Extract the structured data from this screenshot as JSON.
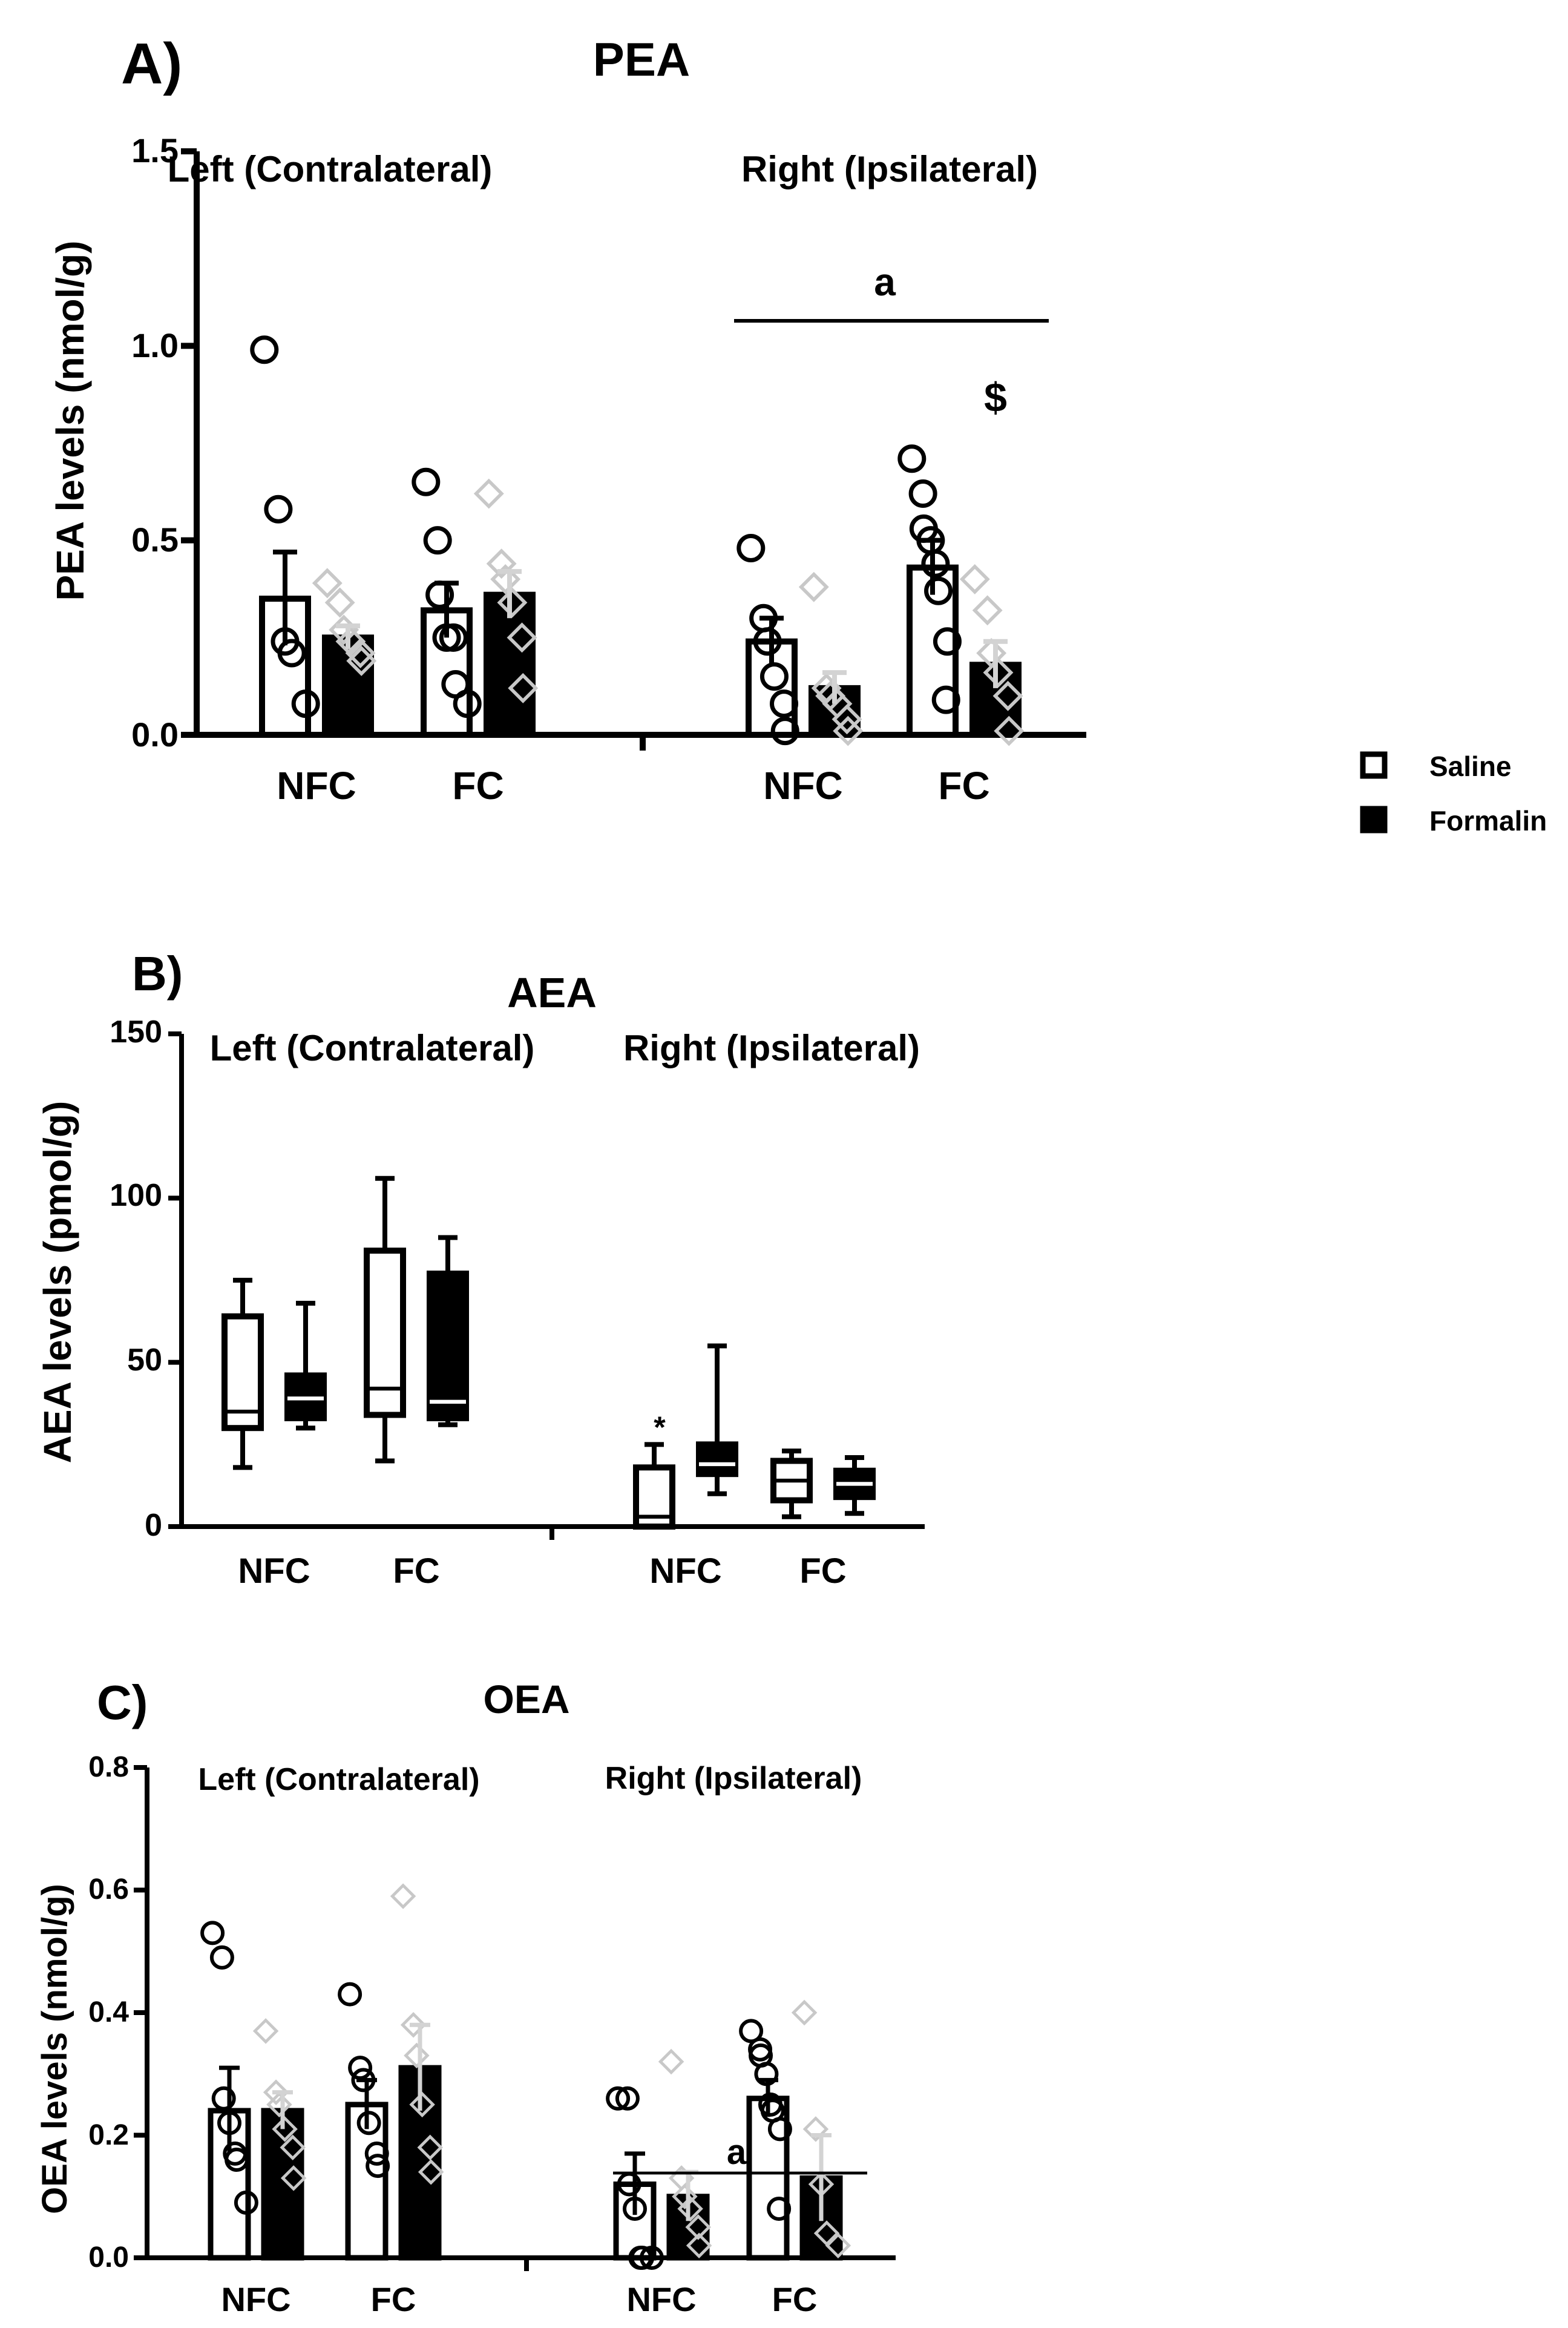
{
  "legend": {
    "items": [
      {
        "label": "Saline",
        "swatch": "open"
      },
      {
        "label": "Formalin",
        "swatch": "filled"
      }
    ]
  },
  "colors": {
    "bar_stroke": "#000000",
    "saline_fill": "#ffffff",
    "formalin_fill": "#000000",
    "formalin_points": "#c8c8c8",
    "formalin_error": "#d3d3d3"
  },
  "chart_data": [
    {
      "panel": "A)",
      "type": "bar",
      "title": "PEA",
      "ylabel": "PEA levels  (nmol/g)",
      "ylim": [
        0,
        1.5
      ],
      "yticks": [
        "0.0",
        "0.5",
        "1.0",
        "1.5"
      ],
      "side_labels": [
        "Left (Contralateral)",
        "Right (Ipsilateral)"
      ],
      "categories": [
        "NFC",
        "FC",
        "NFC",
        "FC"
      ],
      "series": [
        {
          "name": "Saline",
          "values": [
            0.35,
            0.32,
            0.24,
            0.43
          ],
          "sem": [
            0.12,
            0.07,
            0.06,
            0.07
          ],
          "points": [
            [
              0.99,
              0.58,
              0.24,
              0.21,
              0.08
            ],
            [
              0.65,
              0.5,
              0.36,
              0.25,
              0.25,
              0.13,
              0.08
            ],
            [
              0.48,
              0.3,
              0.24,
              0.15,
              0.08,
              0.01
            ],
            [
              0.71,
              0.62,
              0.53,
              0.5,
              0.44,
              0.37,
              0.24,
              0.09
            ]
          ]
        },
        {
          "name": "Formalin",
          "values": [
            0.25,
            0.36,
            0.12,
            0.18
          ],
          "sem": [
            0.03,
            0.06,
            0.04,
            0.06
          ],
          "points": [
            [
              0.39,
              0.34,
              0.27,
              0.24,
              0.21,
              0.19
            ],
            [
              0.62,
              0.44,
              0.4,
              0.34,
              0.25,
              0.12
            ],
            [
              0.38,
              0.12,
              0.1,
              0.08,
              0.04,
              0.01
            ],
            [
              0.4,
              0.32,
              0.21,
              0.16,
              0.1,
              0.01
            ]
          ]
        }
      ],
      "annotations": {
        "bracket": "a",
        "marker": "$"
      }
    },
    {
      "panel": "B)",
      "type": "box",
      "title": "AEA",
      "ylabel": "AEA levels  (pmol/g)",
      "ylim": [
        0,
        150
      ],
      "yticks": [
        "0",
        "50",
        "100",
        "150"
      ],
      "side_labels": [
        "Left (Contralateral)",
        "Right (Ipsilateral)"
      ],
      "categories": [
        "NFC",
        "FC",
        "NFC",
        "FC"
      ],
      "series": [
        {
          "name": "Saline",
          "boxes": [
            [
              18,
              30,
              35,
              64,
              75
            ],
            [
              20,
              34,
              42,
              84,
              106
            ],
            [
              0,
              0,
              3,
              18,
              25
            ],
            [
              3,
              8,
              14,
              20,
              23
            ]
          ]
        },
        {
          "name": "Formalin",
          "boxes": [
            [
              30,
              33,
              39,
              46,
              68
            ],
            [
              31,
              33,
              38,
              77,
              88
            ],
            [
              10,
              16,
              19,
              25,
              55
            ],
            [
              4,
              9,
              13,
              17,
              21
            ]
          ]
        }
      ],
      "annotations": {
        "marker": "*"
      }
    },
    {
      "panel": "C)",
      "type": "bar",
      "title": "OEA",
      "ylabel": "OEA levels  (nmol/g)",
      "ylim": [
        0,
        0.8
      ],
      "yticks": [
        "0.0",
        "0.2",
        "0.4",
        "0.6",
        "0.8"
      ],
      "side_labels": [
        "Left (Contralateral)",
        "Right (Ipsilateral)"
      ],
      "categories": [
        "NFC",
        "FC",
        "NFC",
        "FC"
      ],
      "series": [
        {
          "name": "Saline",
          "values": [
            0.24,
            0.25,
            0.12,
            0.26
          ],
          "sem": [
            0.07,
            0.04,
            0.05,
            0.03
          ],
          "points": [
            [
              0.53,
              0.49,
              0.26,
              0.22,
              0.17,
              0.16,
              0.09
            ],
            [
              0.43,
              0.31,
              0.29,
              0.22,
              0.17,
              0.15
            ],
            [
              0.26,
              0.26,
              0.12,
              0.08,
              0.0,
              0.0,
              0.0
            ],
            [
              0.37,
              0.34,
              0.33,
              0.3,
              0.25,
              0.24,
              0.21,
              0.08
            ]
          ]
        },
        {
          "name": "Formalin",
          "values": [
            0.24,
            0.31,
            0.1,
            0.13
          ],
          "sem": [
            0.03,
            0.07,
            0.04,
            0.07
          ],
          "points": [
            [
              0.37,
              0.27,
              0.25,
              0.21,
              0.18,
              0.13
            ],
            [
              0.59,
              0.38,
              0.33,
              0.25,
              0.18,
              0.14
            ],
            [
              0.32,
              0.13,
              0.1,
              0.08,
              0.05,
              0.02
            ],
            [
              0.4,
              0.21,
              0.12,
              0.04,
              0.02
            ]
          ]
        }
      ],
      "annotations": {
        "bracket": "a"
      }
    }
  ]
}
